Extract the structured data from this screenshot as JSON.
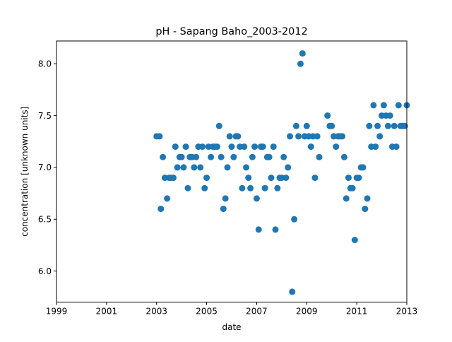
{
  "chart_data": {
    "type": "scatter",
    "title": "pH - Sapang Baho_2003-2012",
    "xlabel": "date",
    "ylabel": "concentration [unknown units]",
    "xlim": [
      1999,
      2013
    ],
    "ylim": [
      5.7,
      8.22
    ],
    "xticks": [
      1999,
      2001,
      2003,
      2005,
      2007,
      2009,
      2011,
      2013
    ],
    "yticks": [
      6.0,
      6.5,
      7.0,
      7.5,
      8.0
    ],
    "xtick_labels": [
      "1999",
      "2001",
      "2003",
      "2005",
      "2007",
      "2009",
      "2011",
      "2013"
    ],
    "ytick_labels": [
      "6.0",
      "6.5",
      "7.0",
      "7.5",
      "8.0"
    ],
    "grid": false,
    "marker_color": "#1f77b4",
    "x": [
      2003.0,
      2003.12,
      2003.17,
      2003.25,
      2003.33,
      2003.42,
      2003.5,
      2003.58,
      2003.67,
      2003.75,
      2003.83,
      2003.92,
      2004.0,
      2004.08,
      2004.17,
      2004.25,
      2004.33,
      2004.42,
      2004.5,
      2004.58,
      2004.67,
      2004.75,
      2004.83,
      2004.92,
      2005.0,
      2005.08,
      2005.17,
      2005.25,
      2005.33,
      2005.42,
      2005.5,
      2005.58,
      2005.67,
      2005.75,
      2005.83,
      2005.92,
      2006.0,
      2006.08,
      2006.17,
      2006.25,
      2006.33,
      2006.42,
      2006.5,
      2006.58,
      2006.67,
      2006.75,
      2006.83,
      2006.92,
      2007.0,
      2007.08,
      2007.17,
      2007.25,
      2007.33,
      2007.42,
      2007.5,
      2007.58,
      2007.67,
      2007.75,
      2007.83,
      2007.92,
      2008.0,
      2008.08,
      2008.17,
      2008.25,
      2008.33,
      2008.42,
      2008.5,
      2008.58,
      2008.67,
      2008.75,
      2008.83,
      2008.92,
      2009.0,
      2009.08,
      2009.17,
      2009.25,
      2009.33,
      2009.42,
      2009.5,
      2009.83,
      2009.92,
      2010.0,
      2010.08,
      2010.17,
      2010.25,
      2010.33,
      2010.42,
      2010.5,
      2010.58,
      2010.67,
      2010.75,
      2010.83,
      2010.92,
      2011.0,
      2011.08,
      2011.17,
      2011.25,
      2011.33,
      2011.42,
      2011.5,
      2011.58,
      2011.67,
      2011.75,
      2011.83,
      2011.92,
      2012.0,
      2012.08,
      2012.17,
      2012.25,
      2012.33,
      2012.42,
      2012.5,
      2012.58,
      2012.67,
      2012.75,
      2012.83,
      2012.92,
      2013.0
    ],
    "y": [
      7.3,
      7.3,
      6.6,
      7.1,
      6.9,
      6.7,
      6.9,
      6.9,
      6.9,
      7.2,
      7.0,
      7.1,
      7.1,
      7.0,
      7.2,
      6.8,
      7.1,
      7.1,
      7.0,
      7.1,
      7.2,
      7.0,
      7.2,
      6.8,
      6.9,
      7.2,
      7.1,
      7.2,
      7.2,
      7.2,
      7.4,
      7.1,
      6.6,
      6.7,
      7.0,
      7.3,
      7.2,
      7.1,
      7.3,
      7.3,
      7.2,
      6.8,
      7.2,
      7.0,
      6.9,
      6.8,
      7.1,
      7.2,
      6.7,
      6.4,
      7.2,
      7.2,
      6.8,
      7.1,
      7.1,
      6.9,
      7.2,
      6.4,
      6.8,
      6.9,
      6.9,
      7.1,
      6.9,
      7.0,
      7.3,
      5.8,
      6.5,
      7.4,
      7.3,
      8.0,
      8.1,
      7.3,
      7.4,
      7.3,
      7.2,
      7.3,
      6.9,
      7.3,
      7.1,
      7.5,
      7.4,
      7.4,
      7.3,
      7.2,
      7.3,
      7.3,
      7.3,
      7.1,
      6.7,
      6.9,
      6.8,
      6.8,
      6.3,
      6.9,
      6.9,
      7.0,
      7.0,
      6.6,
      6.7,
      7.4,
      7.2,
      7.6,
      7.2,
      7.4,
      7.3,
      7.5,
      7.6,
      7.5,
      7.4,
      7.5,
      7.2,
      7.4,
      7.2,
      7.6,
      7.4,
      7.4,
      7.4,
      7.6
    ]
  }
}
